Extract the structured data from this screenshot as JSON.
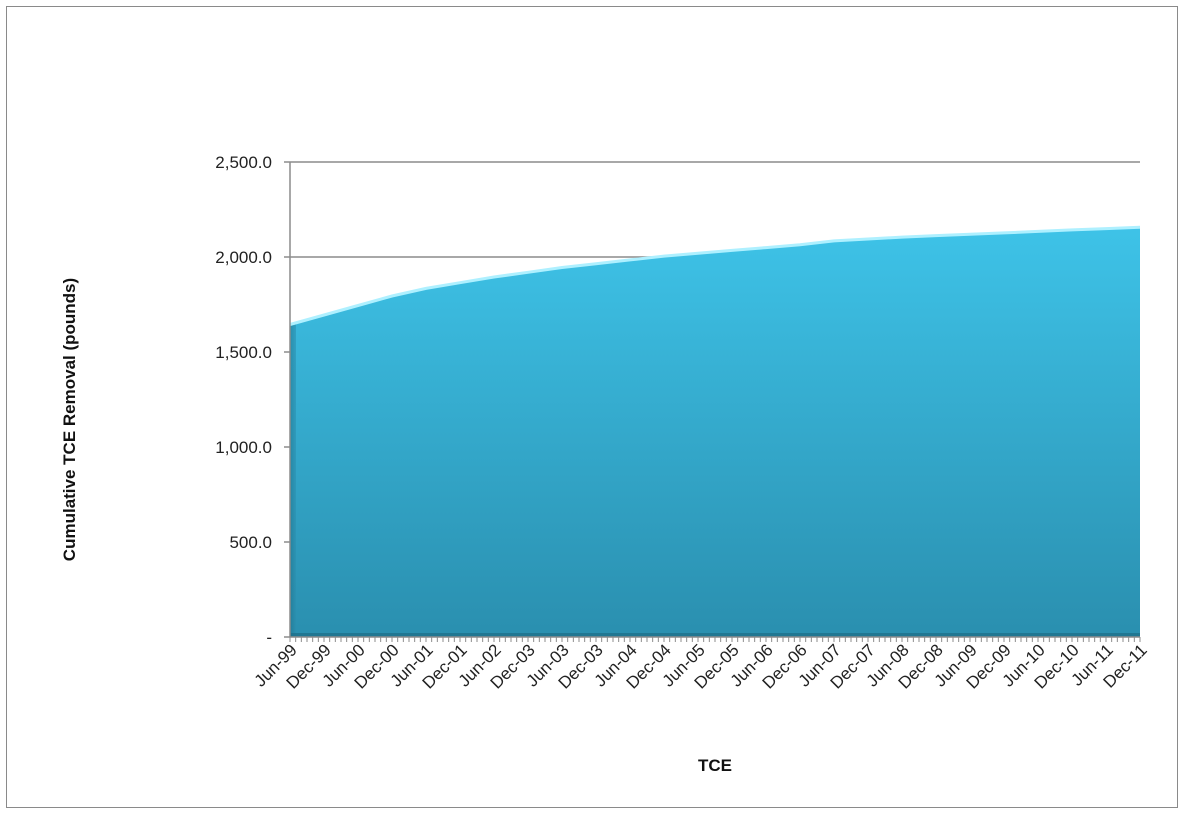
{
  "chart_data": {
    "type": "area",
    "title": "",
    "xlabel": "TCE",
    "ylabel": "Cumulative TCE Removal (pounds)",
    "ylim": [
      0,
      2500
    ],
    "yticks": [
      0,
      500,
      1000,
      1500,
      2000,
      2500
    ],
    "ytick_labels": [
      "-",
      "500.0",
      "1,000.0",
      "1,500.0",
      "2,000.0",
      "2,500.0"
    ],
    "categories": [
      "Jun-99",
      "Dec-99",
      "Jun-00",
      "Dec-00",
      "Jun-01",
      "Dec-01",
      "Jun-02",
      "Dec-03",
      "Jun-03",
      "Dec-03",
      "Jun-04",
      "Dec-04",
      "Jun-05",
      "Dec-05",
      "Jun-06",
      "Dec-06",
      "Jun-07",
      "Dec-07",
      "Jun-08",
      "Dec-08",
      "Jun-09",
      "Dec-09",
      "Jun-10",
      "Dec-10",
      "Jun-11",
      "Dec-11"
    ],
    "values": [
      1650,
      1700,
      1750,
      1800,
      1840,
      1870,
      1900,
      1925,
      1950,
      1970,
      1990,
      2010,
      2025,
      2040,
      2055,
      2070,
      2090,
      2100,
      2110,
      2118,
      2125,
      2132,
      2140,
      2148,
      2155,
      2162
    ],
    "grid": true,
    "legend": "none",
    "colors": {
      "fill_top": "#3ec3e8",
      "fill_bottom": "#2a8faf",
      "top_edge": "#aef0ff",
      "gridline": "#8c8c8c",
      "axis": "#8c8c8c"
    }
  }
}
